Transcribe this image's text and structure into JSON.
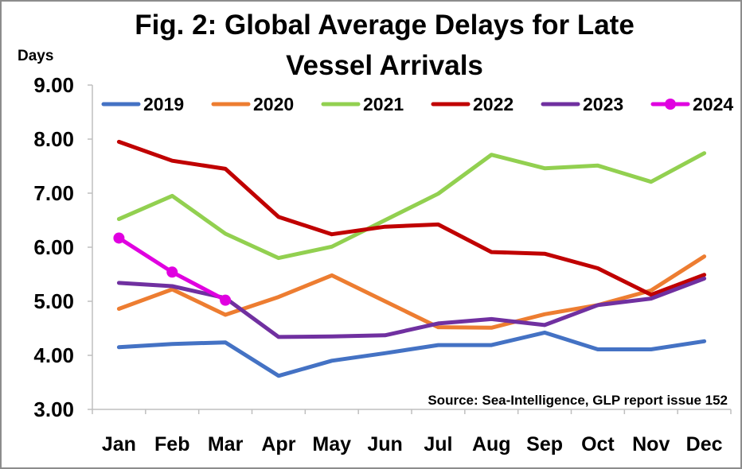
{
  "chart_data": {
    "type": "line",
    "title_lines": [
      "Fig. 2: Global Average Delays for Late",
      "Vessel Arrivals"
    ],
    "ylabel": "Days",
    "xlabel": "",
    "ylim": [
      3,
      9
    ],
    "yticks": [
      "9.00",
      "8.00",
      "7.00",
      "6.00",
      "5.00",
      "4.00",
      "3.00"
    ],
    "ytick_values": [
      9,
      8,
      7,
      6,
      5,
      4,
      3
    ],
    "categories": [
      "Jan",
      "Feb",
      "Mar",
      "Apr",
      "May",
      "Jun",
      "Jul",
      "Aug",
      "Sep",
      "Oct",
      "Nov",
      "Dec"
    ],
    "legend_position": "top",
    "grid": false,
    "source": "Source: Sea-Intelligence, GLP report issue 152",
    "series": [
      {
        "name": "2019",
        "color": "#4472C4",
        "markers": false,
        "values": [
          4.15,
          4.21,
          4.24,
          3.62,
          3.9,
          4.04,
          4.19,
          4.19,
          4.42,
          4.11,
          4.11,
          4.26
        ]
      },
      {
        "name": "2020",
        "color": "#ED7D31",
        "markers": false,
        "values": [
          4.86,
          5.22,
          4.75,
          5.08,
          5.48,
          5.0,
          4.52,
          4.51,
          4.76,
          4.93,
          5.2,
          5.83
        ]
      },
      {
        "name": "2021",
        "color": "#92D050",
        "markers": false,
        "values": [
          6.52,
          6.95,
          6.25,
          5.8,
          6.01,
          6.5,
          6.99,
          7.71,
          7.46,
          7.51,
          7.21,
          7.74
        ]
      },
      {
        "name": "2022",
        "color": "#C00000",
        "markers": false,
        "values": [
          7.95,
          7.6,
          7.45,
          6.56,
          6.24,
          6.38,
          6.42,
          5.91,
          5.88,
          5.61,
          5.12,
          5.49
        ]
      },
      {
        "name": "2023",
        "color": "#7030A0",
        "markers": false,
        "values": [
          5.34,
          5.28,
          5.06,
          4.34,
          4.35,
          4.37,
          4.59,
          4.67,
          4.56,
          4.93,
          5.05,
          5.42
        ]
      },
      {
        "name": "2024",
        "color": "#E000E0",
        "markers": true,
        "values": [
          6.17,
          5.54,
          5.02,
          null,
          null,
          null,
          null,
          null,
          null,
          null,
          null,
          null
        ]
      }
    ]
  }
}
